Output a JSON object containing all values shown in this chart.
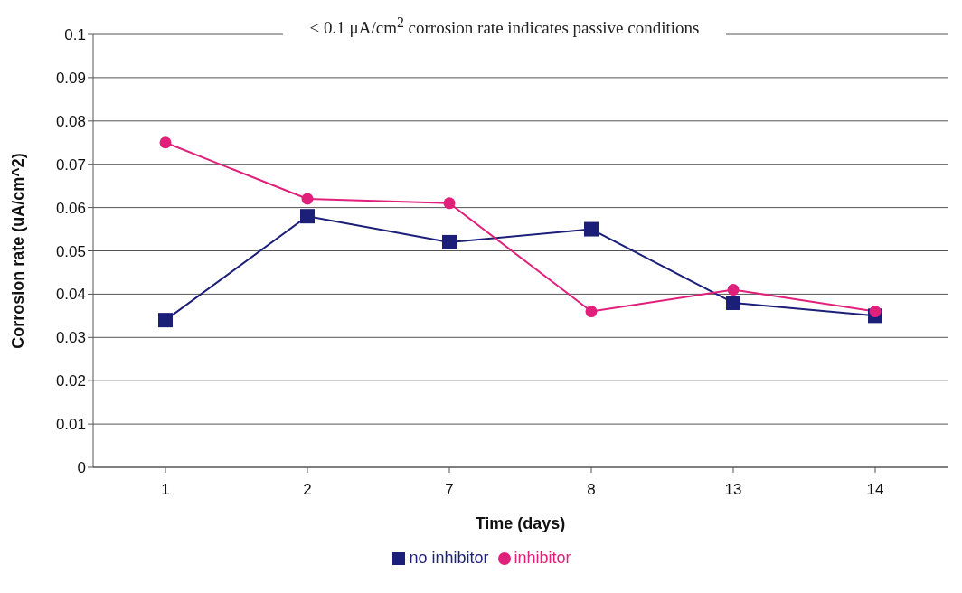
{
  "chart_data": {
    "type": "line",
    "title": "< 0.1 μA/cm$^{2}$ corrosion rate indicates passive conditions",
    "xlabel": "Time (days)",
    "ylabel": "Corrosion rate (uA/cm^2)",
    "categories": [
      "1",
      "2",
      "7",
      "8",
      "13",
      "14"
    ],
    "series": [
      {
        "name": "no inhibitor",
        "color": "#1c1f78",
        "marker": "square",
        "values": [
          0.034,
          0.058,
          0.052,
          0.055,
          0.038,
          0.035
        ]
      },
      {
        "name": "inhibitor",
        "color": "#e0207a",
        "marker": "circle",
        "values": [
          0.075,
          0.062,
          0.061,
          0.036,
          0.041,
          0.036
        ]
      }
    ],
    "ylim": [
      0,
      0.1
    ],
    "yticks": [
      0,
      0.01,
      0.02,
      0.03,
      0.04,
      0.05,
      0.06,
      0.07,
      0.08,
      0.09,
      0.1
    ],
    "grid": "y",
    "legend": "bottom",
    "line_style": "solid"
  }
}
